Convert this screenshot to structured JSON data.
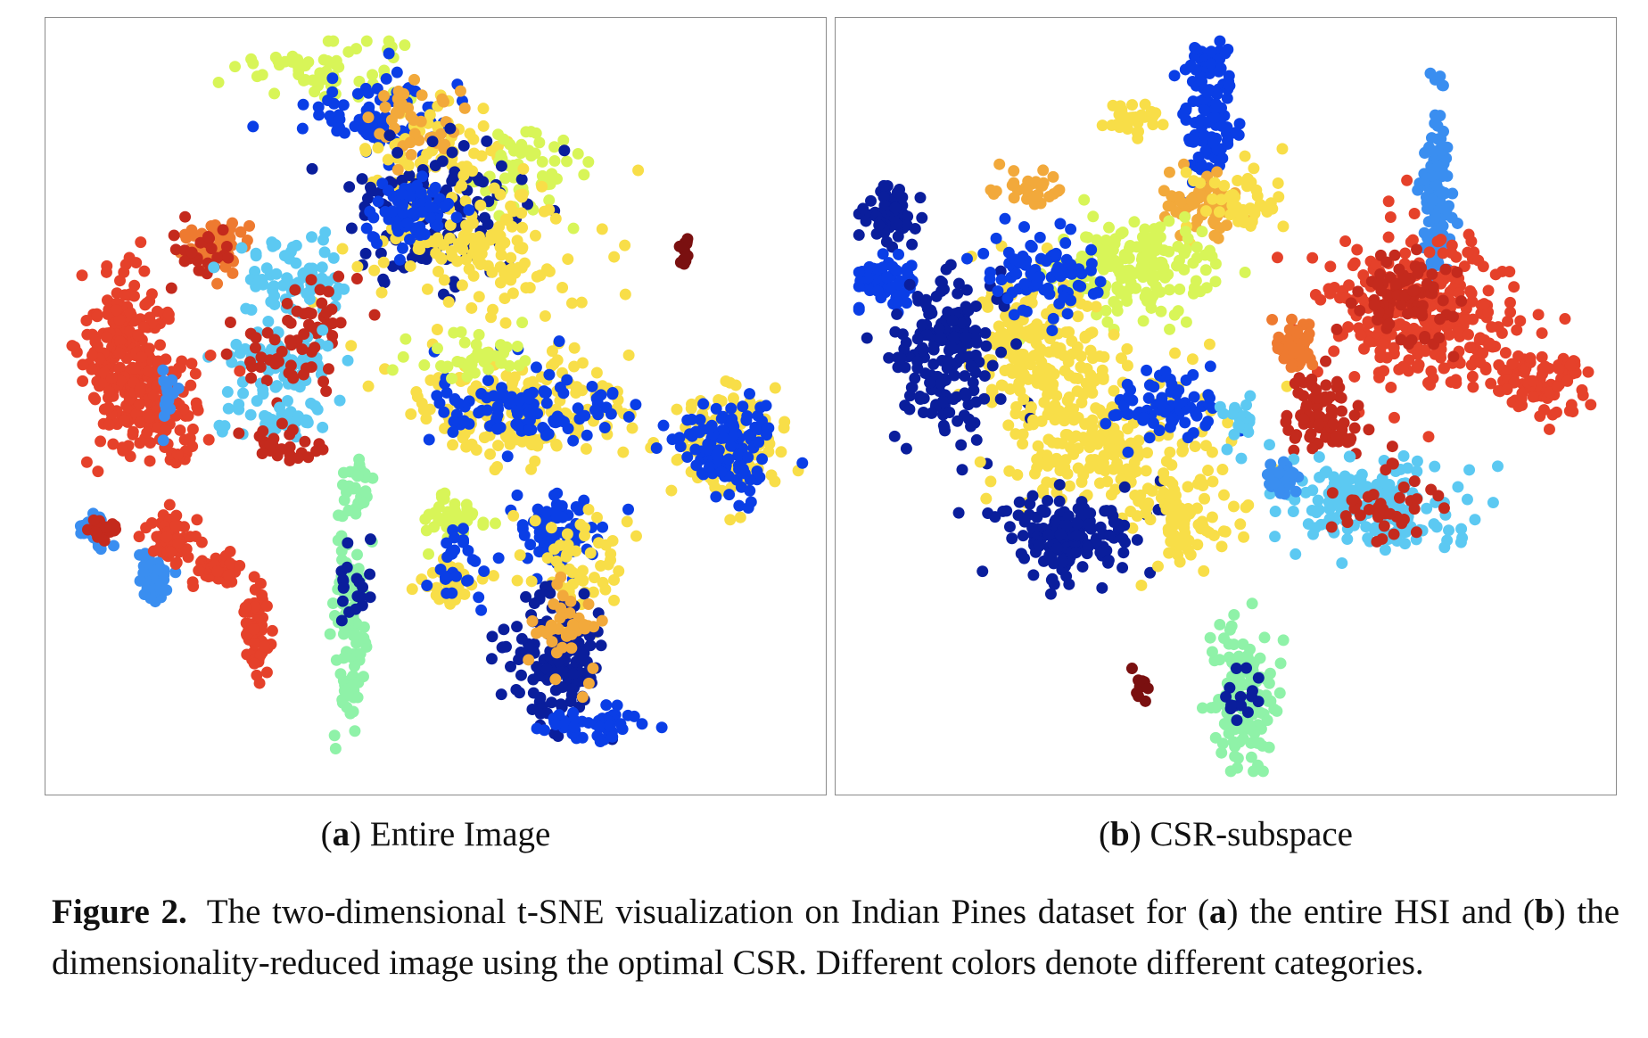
{
  "figure": {
    "label": "Figure 2.",
    "caption_parts": [
      "The two-dimensional t-SNE visualization on Indian Pines dataset for (",
      "a",
      ") the entire HSI and (",
      "b",
      ") the dimensionality-reduced image using the optimal CSR. Different colors denote different categories."
    ]
  },
  "panels": [
    {
      "letter": "a",
      "caption": "Entire Image"
    },
    {
      "letter": "b",
      "caption": "CSR-subspace"
    }
  ],
  "palette": {
    "dark_red": "#7a1010",
    "red": "#c42a1d",
    "red_orange": "#e5412a",
    "orange": "#ee7a30",
    "light_orange": "#f2a93b",
    "yellow": "#f8de48",
    "yellow_green": "#d8f558",
    "mint": "#8ff2a8",
    "light_blue": "#5cc9f2",
    "blue": "#3a8ef0",
    "royal_blue": "#0a3ee6",
    "navy": "#0a1e9c"
  },
  "chart_data": [
    {
      "type": "scatter",
      "panel": "a",
      "clusters": [
        {
          "color": "yellow_green",
          "cx": 0.36,
          "cy": 0.07,
          "rx": 0.1,
          "ry": 0.04,
          "n": 60
        },
        {
          "color": "royal_blue",
          "cx": 0.42,
          "cy": 0.13,
          "rx": 0.08,
          "ry": 0.05,
          "n": 80
        },
        {
          "color": "yellow",
          "cx": 0.5,
          "cy": 0.17,
          "rx": 0.08,
          "ry": 0.05,
          "n": 70
        },
        {
          "color": "light_orange",
          "cx": 0.47,
          "cy": 0.13,
          "rx": 0.06,
          "ry": 0.04,
          "n": 40
        },
        {
          "color": "yellow_green",
          "cx": 0.62,
          "cy": 0.2,
          "rx": 0.06,
          "ry": 0.06,
          "n": 60
        },
        {
          "color": "navy",
          "cx": 0.5,
          "cy": 0.25,
          "rx": 0.1,
          "ry": 0.08,
          "n": 130
        },
        {
          "color": "yellow",
          "cx": 0.55,
          "cy": 0.3,
          "rx": 0.13,
          "ry": 0.09,
          "n": 140
        },
        {
          "color": "royal_blue",
          "cx": 0.47,
          "cy": 0.25,
          "rx": 0.05,
          "ry": 0.04,
          "n": 90
        },
        {
          "color": "dark_red",
          "cx": 0.82,
          "cy": 0.3,
          "rx": 0.01,
          "ry": 0.02,
          "n": 14
        },
        {
          "color": "orange",
          "cx": 0.22,
          "cy": 0.29,
          "rx": 0.04,
          "ry": 0.03,
          "n": 50
        },
        {
          "color": "red",
          "cx": 0.2,
          "cy": 0.3,
          "rx": 0.04,
          "ry": 0.04,
          "n": 25
        },
        {
          "color": "light_blue",
          "cx": 0.32,
          "cy": 0.33,
          "rx": 0.06,
          "ry": 0.05,
          "n": 70
        },
        {
          "color": "red",
          "cx": 0.35,
          "cy": 0.38,
          "rx": 0.04,
          "ry": 0.04,
          "n": 30
        },
        {
          "color": "light_blue",
          "cx": 0.3,
          "cy": 0.44,
          "rx": 0.06,
          "ry": 0.04,
          "n": 80
        },
        {
          "color": "red",
          "cx": 0.31,
          "cy": 0.43,
          "rx": 0.06,
          "ry": 0.05,
          "n": 40
        },
        {
          "color": "red_orange",
          "cx": 0.1,
          "cy": 0.44,
          "rx": 0.05,
          "ry": 0.1,
          "n": 220
        },
        {
          "color": "red_orange",
          "cx": 0.15,
          "cy": 0.5,
          "rx": 0.05,
          "ry": 0.06,
          "n": 120
        },
        {
          "color": "blue",
          "cx": 0.16,
          "cy": 0.49,
          "rx": 0.015,
          "ry": 0.03,
          "n": 15
        },
        {
          "color": "light_blue",
          "cx": 0.3,
          "cy": 0.52,
          "rx": 0.06,
          "ry": 0.03,
          "n": 40
        },
        {
          "color": "red",
          "cx": 0.3,
          "cy": 0.55,
          "rx": 0.05,
          "ry": 0.02,
          "n": 25
        },
        {
          "color": "yellow",
          "cx": 0.62,
          "cy": 0.5,
          "rx": 0.14,
          "ry": 0.06,
          "n": 170
        },
        {
          "color": "royal_blue",
          "cx": 0.62,
          "cy": 0.5,
          "rx": 0.12,
          "ry": 0.05,
          "n": 110
        },
        {
          "color": "yellow_green",
          "cx": 0.55,
          "cy": 0.44,
          "rx": 0.08,
          "ry": 0.03,
          "n": 40
        },
        {
          "color": "yellow",
          "cx": 0.88,
          "cy": 0.55,
          "rx": 0.06,
          "ry": 0.06,
          "n": 120
        },
        {
          "color": "royal_blue",
          "cx": 0.87,
          "cy": 0.55,
          "rx": 0.06,
          "ry": 0.06,
          "n": 110
        },
        {
          "color": "mint",
          "cx": 0.4,
          "cy": 0.6,
          "rx": 0.02,
          "ry": 0.03,
          "n": 25
        },
        {
          "color": "yellow_green",
          "cx": 0.52,
          "cy": 0.65,
          "rx": 0.03,
          "ry": 0.03,
          "n": 40
        },
        {
          "color": "yellow",
          "cx": 0.52,
          "cy": 0.73,
          "rx": 0.03,
          "ry": 0.03,
          "n": 40
        },
        {
          "color": "royal_blue",
          "cx": 0.52,
          "cy": 0.7,
          "rx": 0.03,
          "ry": 0.05,
          "n": 30
        },
        {
          "color": "royal_blue",
          "cx": 0.66,
          "cy": 0.67,
          "rx": 0.05,
          "ry": 0.05,
          "n": 90
        },
        {
          "color": "yellow",
          "cx": 0.68,
          "cy": 0.7,
          "rx": 0.06,
          "ry": 0.07,
          "n": 60
        },
        {
          "color": "navy",
          "cx": 0.66,
          "cy": 0.82,
          "rx": 0.06,
          "ry": 0.08,
          "n": 150
        },
        {
          "color": "light_orange",
          "cx": 0.67,
          "cy": 0.78,
          "rx": 0.05,
          "ry": 0.06,
          "n": 40
        },
        {
          "color": "royal_blue",
          "cx": 0.7,
          "cy": 0.91,
          "rx": 0.06,
          "ry": 0.02,
          "n": 45
        },
        {
          "color": "blue",
          "cx": 0.06,
          "cy": 0.66,
          "rx": 0.02,
          "ry": 0.02,
          "n": 35
        },
        {
          "color": "red",
          "cx": 0.07,
          "cy": 0.66,
          "rx": 0.02,
          "ry": 0.015,
          "n": 15
        },
        {
          "color": "blue",
          "cx": 0.14,
          "cy": 0.72,
          "rx": 0.02,
          "ry": 0.03,
          "n": 45
        },
        {
          "color": "red_orange",
          "cx": 0.16,
          "cy": 0.67,
          "rx": 0.03,
          "ry": 0.03,
          "n": 60
        },
        {
          "color": "red_orange",
          "cx": 0.22,
          "cy": 0.71,
          "rx": 0.03,
          "ry": 0.02,
          "n": 40
        },
        {
          "color": "red_orange",
          "cx": 0.27,
          "cy": 0.79,
          "rx": 0.015,
          "ry": 0.05,
          "n": 60
        },
        {
          "color": "mint",
          "cx": 0.39,
          "cy": 0.78,
          "rx": 0.02,
          "ry": 0.1,
          "n": 120
        },
        {
          "color": "navy",
          "cx": 0.39,
          "cy": 0.74,
          "rx": 0.02,
          "ry": 0.04,
          "n": 20
        }
      ]
    },
    {
      "type": "scatter",
      "panel": "b",
      "clusters": [
        {
          "color": "royal_blue",
          "cx": 0.48,
          "cy": 0.11,
          "rx": 0.03,
          "ry": 0.08,
          "n": 120
        },
        {
          "color": "yellow",
          "cx": 0.38,
          "cy": 0.13,
          "rx": 0.03,
          "ry": 0.02,
          "n": 30
        },
        {
          "color": "light_orange",
          "cx": 0.47,
          "cy": 0.24,
          "rx": 0.05,
          "ry": 0.04,
          "n": 60
        },
        {
          "color": "yellow",
          "cx": 0.52,
          "cy": 0.24,
          "rx": 0.06,
          "ry": 0.05,
          "n": 50
        },
        {
          "color": "light_orange",
          "cx": 0.25,
          "cy": 0.22,
          "rx": 0.04,
          "ry": 0.02,
          "n": 30
        },
        {
          "color": "blue",
          "cx": 0.77,
          "cy": 0.22,
          "rx": 0.015,
          "ry": 0.1,
          "n": 130
        },
        {
          "color": "navy",
          "cx": 0.07,
          "cy": 0.25,
          "rx": 0.03,
          "ry": 0.04,
          "n": 60
        },
        {
          "color": "royal_blue",
          "cx": 0.06,
          "cy": 0.34,
          "rx": 0.04,
          "ry": 0.03,
          "n": 60
        },
        {
          "color": "yellow_green",
          "cx": 0.38,
          "cy": 0.32,
          "rx": 0.1,
          "ry": 0.06,
          "n": 180
        },
        {
          "color": "yellow",
          "cx": 0.25,
          "cy": 0.42,
          "rx": 0.08,
          "ry": 0.08,
          "n": 180
        },
        {
          "color": "navy",
          "cx": 0.14,
          "cy": 0.44,
          "rx": 0.07,
          "ry": 0.1,
          "n": 180
        },
        {
          "color": "royal_blue",
          "cx": 0.26,
          "cy": 0.33,
          "rx": 0.08,
          "ry": 0.05,
          "n": 80
        },
        {
          "color": "yellow",
          "cx": 0.34,
          "cy": 0.55,
          "rx": 0.12,
          "ry": 0.1,
          "n": 230
        },
        {
          "color": "navy",
          "cx": 0.3,
          "cy": 0.67,
          "rx": 0.08,
          "ry": 0.05,
          "n": 160
        },
        {
          "color": "royal_blue",
          "cx": 0.43,
          "cy": 0.5,
          "rx": 0.06,
          "ry": 0.05,
          "n": 80
        },
        {
          "color": "yellow",
          "cx": 0.45,
          "cy": 0.64,
          "rx": 0.05,
          "ry": 0.06,
          "n": 80
        },
        {
          "color": "red_orange",
          "cx": 0.76,
          "cy": 0.38,
          "rx": 0.12,
          "ry": 0.09,
          "n": 300
        },
        {
          "color": "red",
          "cx": 0.73,
          "cy": 0.36,
          "rx": 0.06,
          "ry": 0.05,
          "n": 80
        },
        {
          "color": "red_orange",
          "cx": 0.9,
          "cy": 0.47,
          "rx": 0.06,
          "ry": 0.04,
          "n": 90
        },
        {
          "color": "orange",
          "cx": 0.59,
          "cy": 0.42,
          "rx": 0.025,
          "ry": 0.03,
          "n": 45
        },
        {
          "color": "red",
          "cx": 0.62,
          "cy": 0.52,
          "rx": 0.04,
          "ry": 0.06,
          "n": 80
        },
        {
          "color": "light_blue",
          "cx": 0.69,
          "cy": 0.63,
          "rx": 0.09,
          "ry": 0.05,
          "n": 200
        },
        {
          "color": "red",
          "cx": 0.7,
          "cy": 0.63,
          "rx": 0.09,
          "ry": 0.05,
          "n": 40
        },
        {
          "color": "blue",
          "cx": 0.57,
          "cy": 0.59,
          "rx": 0.02,
          "ry": 0.02,
          "n": 30
        },
        {
          "color": "light_blue",
          "cx": 0.52,
          "cy": 0.52,
          "rx": 0.02,
          "ry": 0.03,
          "n": 25
        },
        {
          "color": "mint",
          "cx": 0.52,
          "cy": 0.88,
          "rx": 0.04,
          "ry": 0.08,
          "n": 140
        },
        {
          "color": "navy",
          "cx": 0.52,
          "cy": 0.88,
          "rx": 0.02,
          "ry": 0.04,
          "n": 15
        },
        {
          "color": "dark_red",
          "cx": 0.39,
          "cy": 0.86,
          "rx": 0.01,
          "ry": 0.015,
          "n": 12
        }
      ]
    }
  ]
}
